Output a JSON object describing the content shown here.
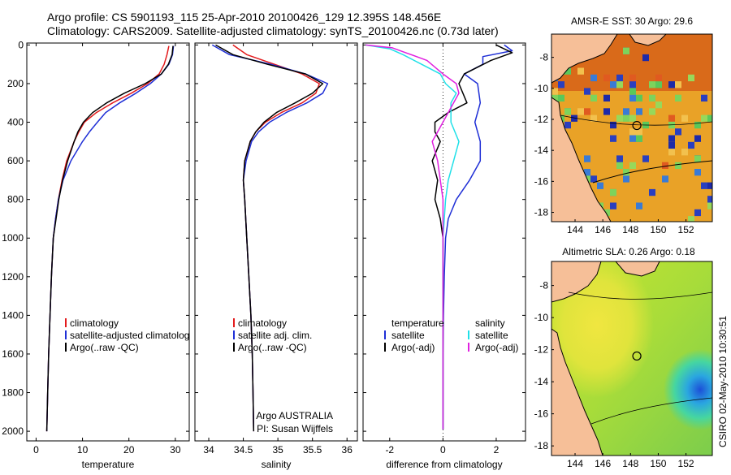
{
  "header": {
    "line1": "Argo profile: CS 5901193_115 25-Apr-2010 20100426_129 12.395S 148.456E",
    "line2": "Climatology: CARS2009. Satellite-adjusted climatology: synTS_20100426.nc (0.73d later)"
  },
  "side_stamp": "CSIRO 02-May-2010 10:30:51",
  "colors": {
    "climatology": "#e31a1c",
    "satellite": "#1f2fd6",
    "argo": "#000000",
    "sat_salinity": "#20e0e8",
    "argo_salinity": "#e020e0",
    "land": "#f6bf98"
  },
  "chart_data": [
    {
      "type": "line",
      "panel": "temperature",
      "xlabel": "temperature",
      "xticks": [
        0,
        10,
        20,
        30
      ],
      "yticks": [
        0,
        200,
        400,
        600,
        800,
        1000,
        1200,
        1400,
        1600,
        1800,
        2000
      ],
      "xlim": [
        -2,
        33
      ],
      "ylim": [
        2050,
        -10
      ],
      "y_reversed": true,
      "legend": {
        "placement": "bottom-center",
        "entries": [
          "climatology",
          "satellite-adjusted climatolog",
          "Argo(..raw -QC)"
        ]
      },
      "series": [
        {
          "name": "climatology",
          "color": "climatology",
          "x": [
            28.6,
            28.2,
            27.6,
            26.5,
            24.0,
            20.5,
            16.5,
            13.0,
            10.4,
            9.2,
            8.2,
            6.6,
            5.6,
            4.8,
            4.2,
            3.7,
            3.3,
            3.0,
            2.7,
            2.5,
            2.3
          ],
          "y": [
            5,
            50,
            100,
            150,
            200,
            250,
            300,
            350,
            400,
            450,
            500,
            600,
            700,
            800,
            900,
            1000,
            1200,
            1400,
            1600,
            1800,
            2000
          ]
        },
        {
          "name": "satellite-adjusted climatolog",
          "color": "satellite",
          "x": [
            29.6,
            29.4,
            28.6,
            27.0,
            24.6,
            21.5,
            18.0,
            15.0,
            13.2,
            11.5,
            10.0,
            7.5,
            5.8,
            4.8,
            4.2,
            3.7,
            3.3,
            3.0,
            2.7,
            2.5,
            2.3
          ],
          "y": [
            5,
            50,
            100,
            150,
            200,
            250,
            300,
            350,
            400,
            450,
            500,
            600,
            700,
            800,
            900,
            1000,
            1200,
            1400,
            1600,
            1800,
            2000
          ]
        },
        {
          "name": "Argo(..raw -QC)",
          "color": "argo",
          "x": [
            29.5,
            29.3,
            28.5,
            27.0,
            23.5,
            19.0,
            15.2,
            12.2,
            10.2,
            9.0,
            8.2,
            6.8,
            5.7,
            4.9,
            4.3,
            3.7,
            3.3,
            3.0,
            2.7,
            2.5,
            2.3
          ],
          "y": [
            5,
            50,
            100,
            150,
            200,
            250,
            300,
            350,
            400,
            450,
            500,
            600,
            700,
            800,
            900,
            1000,
            1200,
            1400,
            1600,
            1800,
            2000
          ]
        }
      ]
    },
    {
      "type": "line",
      "panel": "salinity",
      "xlabel": "salinity",
      "xticks": [
        34,
        34.5,
        35,
        35.5,
        36
      ],
      "yticks": [
        0,
        200,
        400,
        600,
        800,
        1000,
        1200,
        1400,
        1600,
        1800,
        2000
      ],
      "xlim": [
        33.8,
        36.15
      ],
      "ylim": [
        2050,
        -10
      ],
      "y_reversed": true,
      "legend": {
        "placement": "bottom-center",
        "entries": [
          "climatology",
          "satellite adj. clim.",
          "Argo(..raw -QC)"
        ]
      },
      "annotations": [
        "Argo AUSTRALIA",
        "PI: Susan Wijffels"
      ],
      "series": [
        {
          "name": "climatology",
          "color": "climatology",
          "x": [
            34.35,
            34.55,
            34.95,
            35.35,
            35.6,
            35.55,
            35.35,
            35.05,
            34.82,
            34.68,
            34.6,
            34.52,
            34.5,
            34.52,
            34.55,
            34.58,
            34.61,
            34.63,
            34.64,
            34.65
          ],
          "y": [
            0,
            50,
            100,
            150,
            200,
            250,
            300,
            350,
            400,
            450,
            500,
            600,
            700,
            800,
            1000,
            1200,
            1400,
            1600,
            1800,
            2000
          ]
        },
        {
          "name": "satellite adj. clim.",
          "color": "satellite",
          "x": [
            34.05,
            34.3,
            34.9,
            35.4,
            35.72,
            35.65,
            35.42,
            35.12,
            34.88,
            34.72,
            34.62,
            34.54,
            34.5,
            34.52,
            34.55,
            34.58,
            34.61,
            34.63,
            34.64,
            34.65
          ],
          "y": [
            0,
            50,
            100,
            150,
            200,
            250,
            300,
            350,
            400,
            450,
            500,
            600,
            700,
            800,
            1000,
            1200,
            1400,
            1600,
            1800,
            2000
          ]
        },
        {
          "name": "Argo(..raw -QC)",
          "color": "argo",
          "x": [
            34.1,
            34.35,
            34.85,
            35.4,
            35.65,
            35.5,
            35.25,
            34.98,
            34.8,
            34.68,
            34.6,
            34.52,
            34.5,
            34.52,
            34.55,
            34.58,
            34.61,
            34.63,
            34.64,
            34.65
          ],
          "y": [
            0,
            50,
            100,
            150,
            200,
            250,
            300,
            350,
            400,
            450,
            500,
            600,
            700,
            800,
            1000,
            1200,
            1400,
            1600,
            1800,
            2000
          ]
        }
      ]
    },
    {
      "type": "line",
      "panel": "difference",
      "xlabel": "difference from climatology",
      "xticks": [
        -2,
        0,
        2
      ],
      "yticks": [
        0,
        200,
        400,
        600,
        800,
        1000,
        1200,
        1400,
        1600,
        1800,
        2000
      ],
      "xlim": [
        -3,
        3.1
      ],
      "ylim": [
        2050,
        -10
      ],
      "y_reversed": true,
      "zero_line": "dotted",
      "legend": {
        "placement": "bottom-center",
        "groups": [
          {
            "heading": "temperature",
            "entries": [
              "satellite",
              "Argo(-adj)"
            ]
          },
          {
            "heading": "salinity",
            "entries": [
              "satellite",
              "Argo(-adj)"
            ]
          }
        ]
      },
      "series": [
        {
          "name": "satellite",
          "group": "temperature",
          "color": "satellite",
          "x": [
            2.3,
            2.6,
            1.5,
            1.5,
            0.8,
            1.3,
            1.4,
            1.2,
            1.4,
            1.4,
            1.0,
            0.5,
            0.2,
            0.1,
            0.05,
            0.02,
            0,
            0,
            0
          ],
          "y": [
            0,
            30,
            60,
            100,
            150,
            200,
            300,
            400,
            500,
            600,
            700,
            800,
            900,
            1000,
            1200,
            1400,
            1600,
            1800,
            1990
          ]
        },
        {
          "name": "Argo(-adj)",
          "group": "temperature",
          "color": "argo",
          "x": [
            2.0,
            2.6,
            1.8,
            0.8,
            0.6,
            0.9,
            0.2,
            -0.3,
            -0.3,
            -0.1,
            -0.4,
            -0.2,
            -0.3,
            -0.1,
            0,
            0,
            0,
            0,
            0
          ],
          "y": [
            0,
            40,
            80,
            150,
            200,
            300,
            350,
            400,
            450,
            500,
            600,
            700,
            800,
            900,
            1000,
            1200,
            1400,
            1600,
            1990
          ]
        },
        {
          "name": "satellite",
          "group": "salinity",
          "color": "sat_salinity",
          "x": [
            -2.9,
            -2.0,
            -1.5,
            -0.8,
            -0.1,
            0.1,
            0.5,
            0.3,
            0.3,
            0.6,
            0.4,
            0.2,
            0.1,
            0.05,
            0,
            0,
            0,
            0,
            0
          ],
          "y": [
            0,
            20,
            50,
            100,
            150,
            200,
            250,
            300,
            400,
            500,
            600,
            700,
            800,
            900,
            1000,
            1200,
            1400,
            1600,
            1990
          ]
        },
        {
          "name": "Argo(-adj)",
          "group": "salinity",
          "color": "argo_salinity",
          "x": [
            -2.9,
            -1.9,
            -1.4,
            -0.6,
            0.0,
            0.5,
            0.6,
            0.2,
            -0.2,
            -0.4,
            -0.2,
            -0.1,
            0,
            0,
            0,
            0
          ],
          "y": [
            0,
            15,
            40,
            80,
            150,
            200,
            250,
            350,
            450,
            500,
            600,
            700,
            800,
            1000,
            1500,
            1990
          ]
        }
      ]
    },
    {
      "type": "heatmap",
      "panel": "sst-map",
      "title": "AMSR-E SST: 30 Argo: 29.6",
      "xticks": [
        144,
        146,
        148,
        150,
        152
      ],
      "yticks": [
        -8,
        -10,
        -12,
        -14,
        -16,
        -18
      ],
      "xlim": [
        142.3,
        153.9
      ],
      "ylim": [
        -18.6,
        -6.5
      ],
      "argo_position": {
        "lon": 148.456,
        "lat": -12.395
      }
    },
    {
      "type": "heatmap",
      "panel": "sla-map",
      "title": "Altimetric SLA: 0.26 Argo: 0.18",
      "xticks": [
        144,
        146,
        148,
        150,
        152
      ],
      "yticks": [
        -8,
        -10,
        -12,
        -14,
        -16,
        -18
      ],
      "xlim": [
        142.3,
        153.9
      ],
      "ylim": [
        -18.6,
        -6.5
      ],
      "argo_position": {
        "lon": 148.456,
        "lat": -12.395
      }
    }
  ]
}
